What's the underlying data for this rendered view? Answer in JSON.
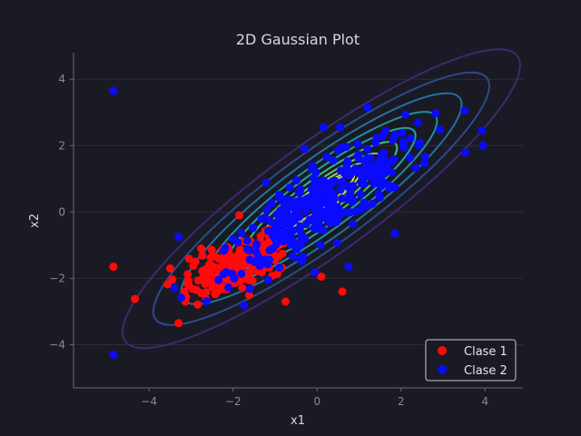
{
  "chart_data": {
    "type": "scatter",
    "title": "2D Gaussian Plot",
    "xlabel": "x1",
    "ylabel": "x2",
    "xlim": [
      -5.8,
      4.9
    ],
    "ylim": [
      -5.3,
      4.8
    ],
    "xticks": [
      -4,
      -2,
      0,
      2,
      4
    ],
    "yticks": [
      -4,
      -2,
      0,
      2,
      4
    ],
    "grid": "horizontal",
    "legend": "bottom-right",
    "colors": {
      "background": "#1a1a24",
      "grid": "#2c2c3a",
      "axis": "#6a6a7a",
      "class1": "#ff0a0a",
      "class2": "#0a0aff"
    },
    "series": [
      {
        "name": "Clase 1",
        "color": "#ff0a0a",
        "mean": [
          -1.9,
          -1.6
        ],
        "outliers": [
          [
            -4.85,
            -1.65
          ],
          [
            -3.5,
            -1.7
          ],
          [
            -3.3,
            -3.35
          ],
          [
            -2.9,
            -1.5
          ],
          [
            0.6,
            -2.4
          ],
          [
            -0.75,
            -2.7
          ],
          [
            0.1,
            -1.95
          ],
          [
            -1.85,
            -0.1
          ]
        ]
      },
      {
        "name": "Clase 2",
        "color": "#0a0aff",
        "mean": [
          0.2,
          0.3
        ],
        "outliers": [
          [
            -4.85,
            3.65
          ],
          [
            -4.85,
            -4.3
          ],
          [
            -3.3,
            -0.75
          ],
          [
            3.95,
            2.0
          ],
          [
            0.15,
            2.55
          ],
          [
            0.55,
            2.55
          ],
          [
            1.2,
            3.15
          ],
          [
            -0.3,
            1.9
          ],
          [
            0.75,
            -1.65
          ],
          [
            1.85,
            -0.65
          ]
        ]
      }
    ],
    "contours": {
      "center": [
        0.1,
        0.4
      ],
      "levels": 10,
      "colormap": [
        "#3d2a6e",
        "#2c4a8a",
        "#2471a0",
        "#1f8fa5",
        "#21a3a0",
        "#3cb88a",
        "#5fc97a",
        "#8dd36a",
        "#b8dc60",
        "#d8e25a"
      ]
    }
  }
}
